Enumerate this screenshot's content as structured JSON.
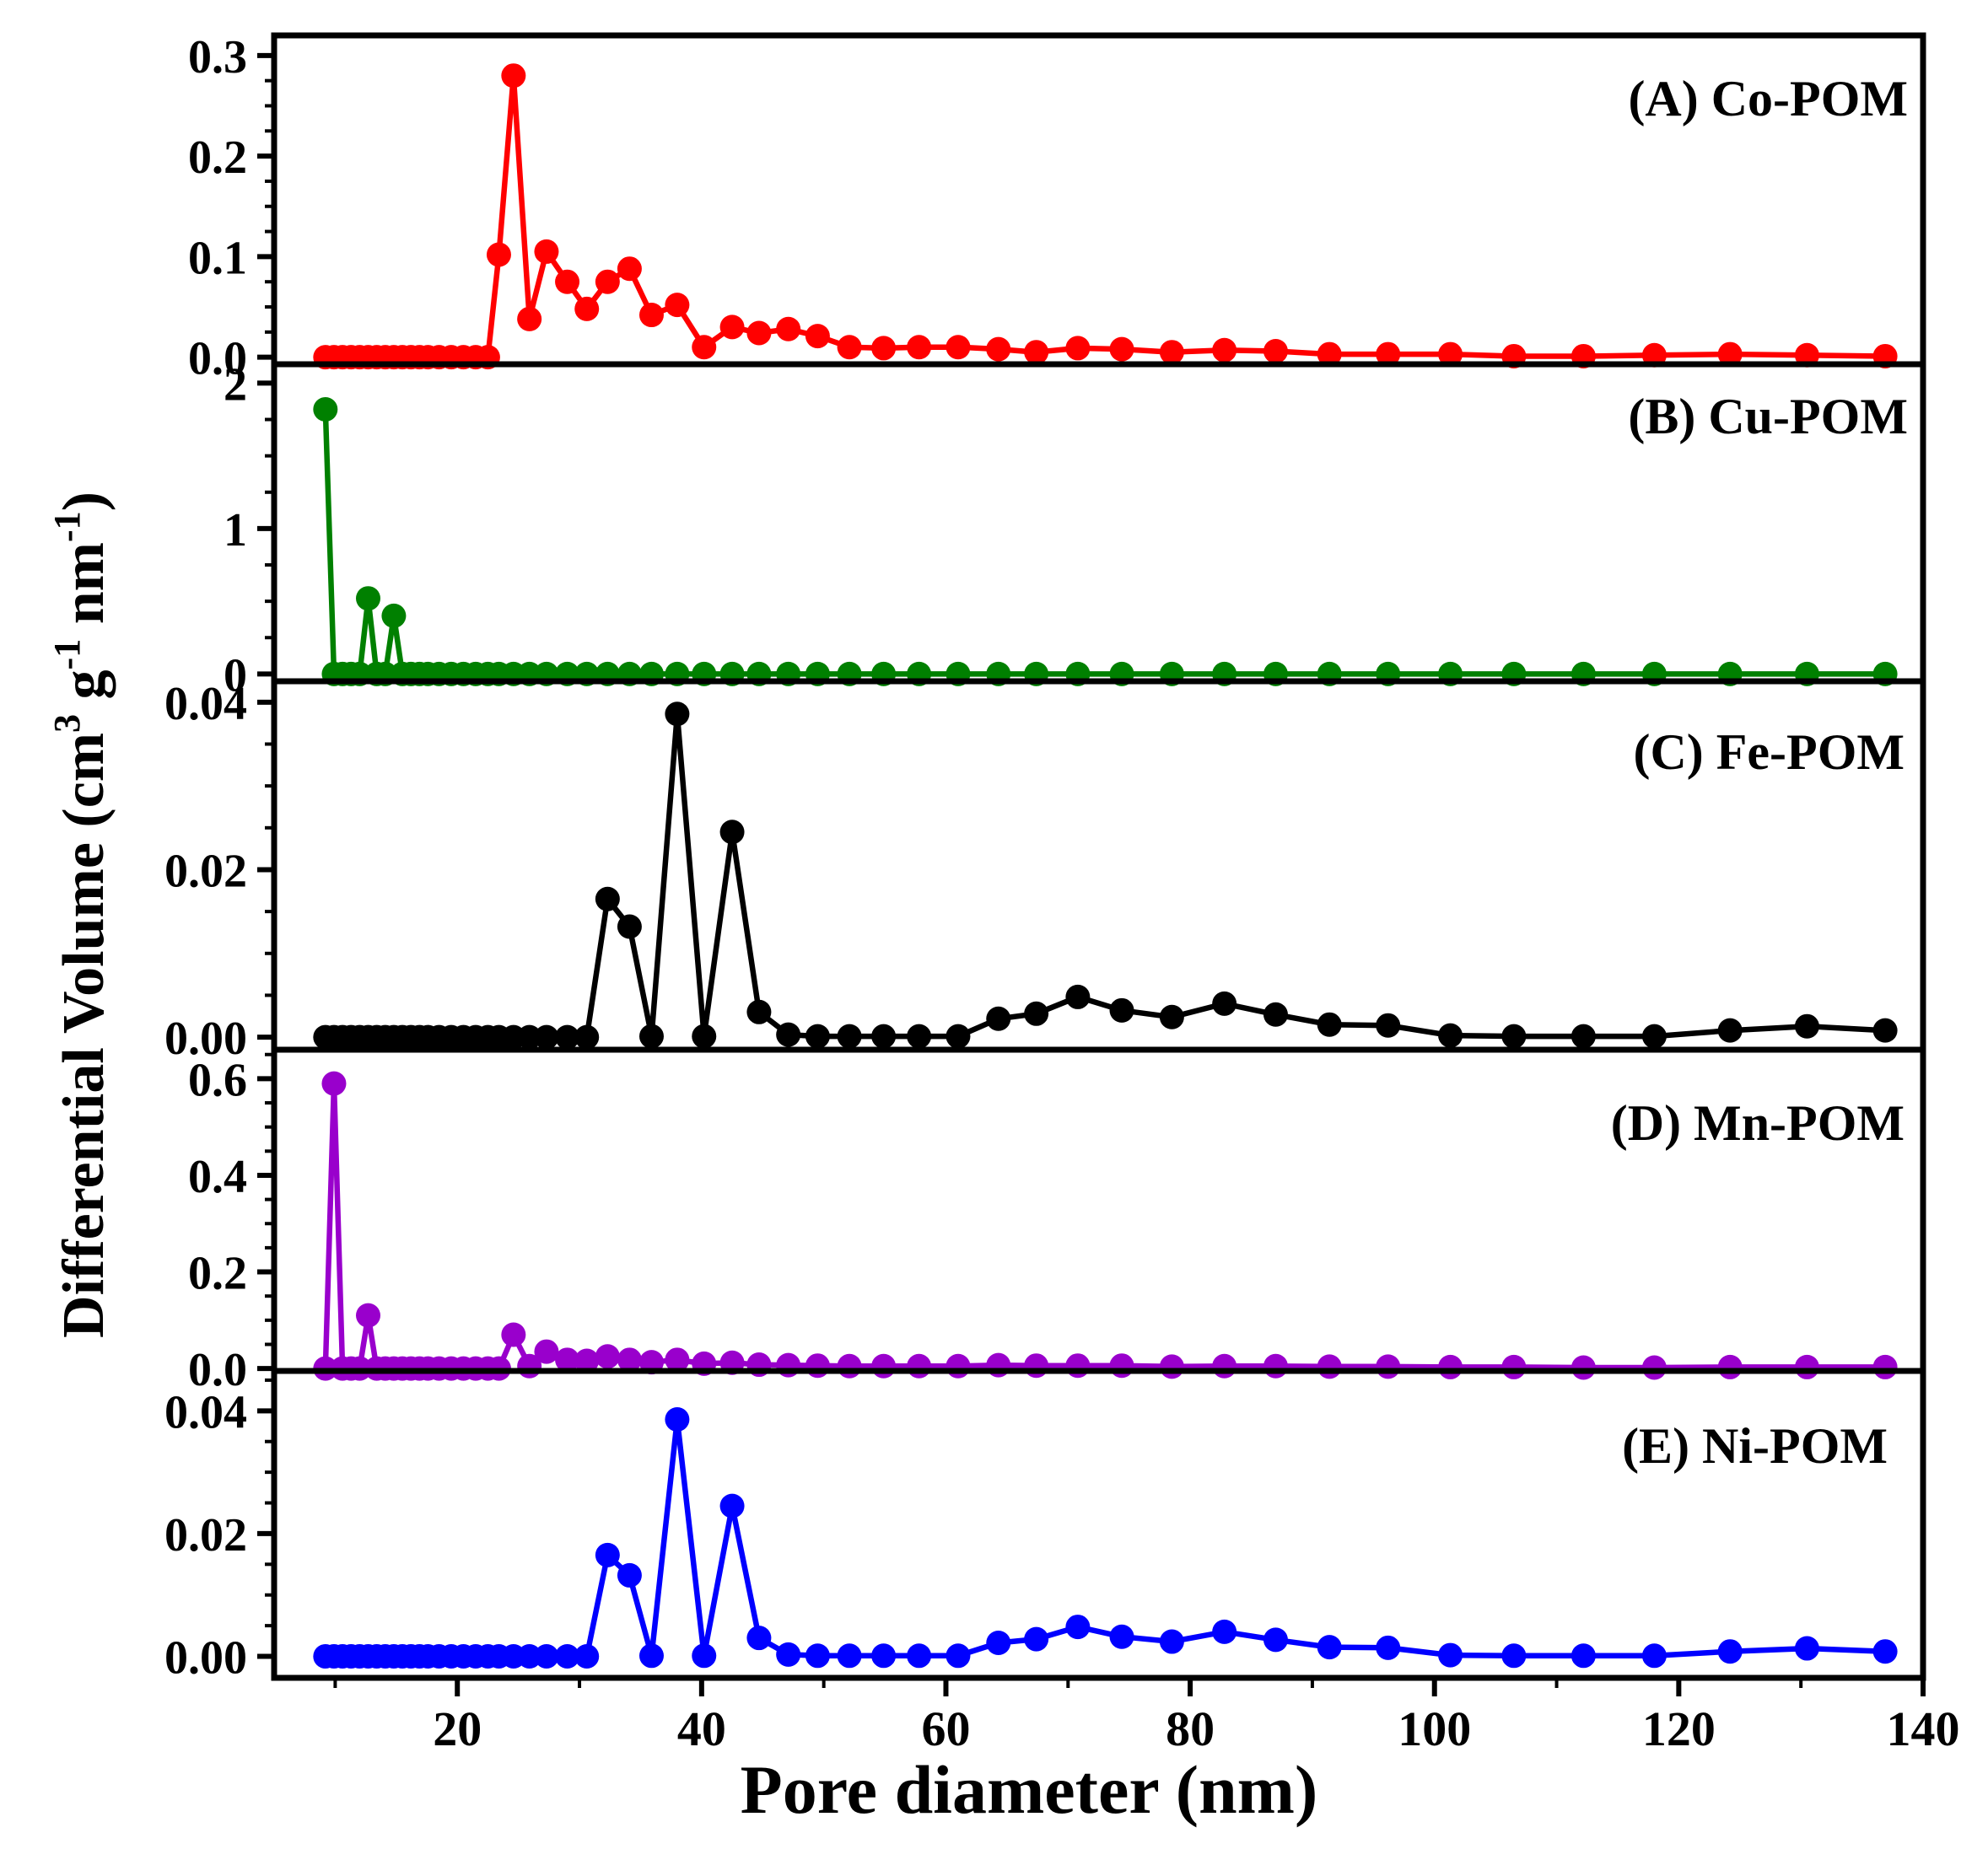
{
  "figure": {
    "xlabel": "Pore diameter (nm)",
    "ylabel": {
      "base": "Differential Volume (cm",
      "sup1": "3",
      "mid": " g",
      "sup2": "-1",
      "tail": " nm",
      "sup3": "-1",
      "end": ")"
    }
  },
  "chart_data": [
    {
      "type": "line",
      "title": "(A) Co-POM",
      "color": "#ff0000",
      "xlim": [
        5,
        140
      ],
      "ylim": [
        -0.007,
        0.32
      ],
      "yticks": [
        0.0,
        0.1,
        0.2,
        0.3
      ],
      "ytick_labels": [
        "0.0",
        "0.1",
        "0.2",
        "0.3"
      ],
      "x": [
        9.2,
        9.9,
        10.6,
        11.3,
        12.0,
        12.7,
        13.4,
        14.1,
        14.8,
        15.5,
        16.2,
        16.9,
        17.6,
        18.5,
        19.5,
        20.5,
        21.5,
        22.5,
        23.4,
        24.6,
        25.9,
        27.3,
        29.0,
        30.6,
        32.3,
        34.1,
        35.9,
        38.0,
        40.2,
        42.5,
        44.7,
        47.1,
        49.5,
        52.1,
        54.9,
        57.8,
        61.0,
        64.3,
        67.4,
        70.8,
        74.4,
        78.5,
        82.8,
        87.0,
        91.4,
        96.2,
        101.3,
        106.5,
        112.2,
        118.0,
        124.2,
        130.5,
        136.9
      ],
      "y": [
        0,
        0,
        0,
        0,
        0,
        0,
        0,
        0,
        0,
        0,
        0,
        0,
        0,
        0,
        0,
        0,
        0,
        0,
        0.102,
        0.28,
        0.038,
        0.105,
        0.075,
        0.048,
        0.075,
        0.088,
        0.042,
        0.052,
        0.01,
        0.03,
        0.024,
        0.028,
        0.021,
        0.01,
        0.009,
        0.01,
        0.01,
        0.008,
        0.005,
        0.009,
        0.008,
        0.005,
        0.007,
        0.006,
        0.003,
        0.003,
        0.003,
        0.001,
        0.001,
        0.002,
        0.003,
        0.002,
        0.001
      ]
    },
    {
      "type": "line",
      "title": "(B) Cu-POM",
      "color": "#008000",
      "xlim": [
        5,
        140
      ],
      "ylim": [
        -0.05,
        2.13
      ],
      "yticks": [
        0,
        1,
        2
      ],
      "ytick_labels": [
        "0",
        "1",
        "2"
      ],
      "x": [
        9.2,
        9.9,
        10.6,
        11.3,
        12.0,
        12.7,
        13.4,
        14.1,
        14.8,
        15.5,
        16.2,
        16.9,
        17.6,
        18.5,
        19.5,
        20.5,
        21.5,
        22.5,
        23.4,
        24.6,
        25.9,
        27.3,
        29.0,
        30.6,
        32.3,
        34.1,
        35.9,
        38.0,
        40.2,
        42.5,
        44.7,
        47.1,
        49.5,
        52.1,
        54.9,
        57.8,
        61.0,
        64.3,
        67.4,
        70.8,
        74.4,
        78.5,
        82.8,
        87.0,
        91.4,
        96.2,
        101.3,
        106.5,
        112.2,
        118.0,
        124.2,
        130.5,
        136.9
      ],
      "y": [
        1.82,
        0,
        0,
        0,
        0,
        0.52,
        0,
        0,
        0.4,
        0,
        0,
        0,
        0,
        0,
        0,
        0,
        0,
        0,
        0,
        0,
        0,
        0,
        0,
        0,
        0,
        0,
        0,
        0,
        0,
        0,
        0,
        0,
        0,
        0,
        0,
        0,
        0,
        0,
        0,
        0,
        0,
        0,
        0,
        0,
        0,
        0,
        0,
        0,
        0,
        0,
        0,
        0,
        0
      ]
    },
    {
      "type": "line",
      "title": "(C) Fe-POM",
      "color": "#000000",
      "xlim": [
        5,
        140
      ],
      "ylim": [
        -0.0015,
        0.0425
      ],
      "yticks": [
        0.0,
        0.02,
        0.04
      ],
      "ytick_labels": [
        "0.00",
        "0.02",
        "0.04"
      ],
      "x": [
        9.2,
        9.9,
        10.6,
        11.3,
        12.0,
        12.7,
        13.4,
        14.1,
        14.8,
        15.5,
        16.2,
        16.9,
        17.6,
        18.5,
        19.5,
        20.5,
        21.5,
        22.5,
        23.4,
        24.6,
        25.9,
        27.3,
        29.0,
        30.6,
        32.3,
        34.1,
        35.9,
        38.0,
        40.2,
        42.5,
        44.7,
        47.1,
        49.5,
        52.1,
        54.9,
        57.8,
        61.0,
        64.3,
        67.4,
        70.8,
        74.4,
        78.5,
        82.8,
        87.0,
        91.4,
        96.2,
        101.3,
        106.5,
        112.2,
        118.0,
        124.2,
        130.5,
        136.9
      ],
      "y": [
        0,
        0,
        0,
        0,
        0,
        0,
        0,
        0,
        0,
        0,
        0,
        0,
        0,
        0,
        0,
        0,
        0,
        0,
        0,
        0,
        0,
        0,
        0,
        0,
        0.0165,
        0.0132,
        0.0001,
        0.0386,
        0.0001,
        0.0245,
        0.003,
        0.0003,
        0.0001,
        0.0001,
        0.0001,
        0.0001,
        0.0001,
        0.0022,
        0.0028,
        0.0048,
        0.0032,
        0.0024,
        0.004,
        0.0027,
        0.0015,
        0.0014,
        0.0002,
        0.0001,
        0.0001,
        0.0001,
        0.0008,
        0.0013,
        0.0008
      ]
    },
    {
      "type": "line",
      "title": "(D) Mn-POM",
      "color": "#9900cc",
      "xlim": [
        5,
        140
      ],
      "ylim": [
        -0.005,
        0.66
      ],
      "yticks": [
        0.0,
        0.2,
        0.4,
        0.6
      ],
      "ytick_labels": [
        "0.0",
        "0.2",
        "0.4",
        "0.6"
      ],
      "x": [
        9.2,
        9.9,
        10.6,
        11.3,
        12.0,
        12.7,
        13.4,
        14.1,
        14.8,
        15.5,
        16.2,
        16.9,
        17.6,
        18.5,
        19.5,
        20.5,
        21.5,
        22.5,
        23.4,
        24.6,
        25.9,
        27.3,
        29.0,
        30.6,
        32.3,
        34.1,
        35.9,
        38.0,
        40.2,
        42.5,
        44.7,
        47.1,
        49.5,
        52.1,
        54.9,
        57.8,
        61.0,
        64.3,
        67.4,
        70.8,
        74.4,
        78.5,
        82.8,
        87.0,
        91.4,
        96.2,
        101.3,
        106.5,
        112.2,
        118.0,
        124.2,
        130.5,
        136.9
      ],
      "y": [
        0,
        0.59,
        0,
        0,
        0,
        0.11,
        0,
        0,
        0,
        0,
        0,
        0,
        0,
        0,
        0,
        0,
        0,
        0,
        0,
        0.07,
        0.005,
        0.035,
        0.018,
        0.016,
        0.025,
        0.018,
        0.013,
        0.018,
        0.01,
        0.012,
        0.008,
        0.007,
        0.006,
        0.005,
        0.005,
        0.005,
        0.005,
        0.007,
        0.006,
        0.006,
        0.006,
        0.004,
        0.005,
        0.005,
        0.004,
        0.004,
        0.003,
        0.003,
        0.002,
        0.002,
        0.003,
        0.003,
        0.003
      ]
    },
    {
      "type": "line",
      "title": "(E) Ni-POM",
      "color": "#0000ff",
      "xlim": [
        5,
        140
      ],
      "ylim": [
        -0.0035,
        0.0465
      ],
      "yticks": [
        0.0,
        0.02,
        0.04
      ],
      "ytick_labels": [
        "0.00",
        "0.02",
        "0.04"
      ],
      "x": [
        9.2,
        9.9,
        10.6,
        11.3,
        12.0,
        12.7,
        13.4,
        14.1,
        14.8,
        15.5,
        16.2,
        16.9,
        17.6,
        18.5,
        19.5,
        20.5,
        21.5,
        22.5,
        23.4,
        24.6,
        25.9,
        27.3,
        29.0,
        30.6,
        32.3,
        34.1,
        35.9,
        38.0,
        40.2,
        42.5,
        44.7,
        47.1,
        49.5,
        52.1,
        54.9,
        57.8,
        61.0,
        64.3,
        67.4,
        70.8,
        74.4,
        78.5,
        82.8,
        87.0,
        91.4,
        96.2,
        101.3,
        106.5,
        112.2,
        118.0,
        124.2,
        130.5,
        136.9
      ],
      "y": [
        0,
        0,
        0,
        0,
        0,
        0,
        0,
        0,
        0,
        0,
        0,
        0,
        0,
        0,
        0,
        0,
        0,
        0,
        0,
        0,
        0,
        0,
        0,
        0,
        0.0165,
        0.0132,
        0.0001,
        0.0386,
        0.0001,
        0.0245,
        0.003,
        0.0003,
        0.0001,
        0.0001,
        0.0001,
        0.0001,
        0.0001,
        0.0022,
        0.0028,
        0.0048,
        0.0032,
        0.0024,
        0.004,
        0.0027,
        0.0015,
        0.0014,
        0.0002,
        0.0001,
        0.0001,
        0.0001,
        0.0008,
        0.0013,
        0.0008
      ],
      "xticks": [
        20,
        40,
        60,
        80,
        100,
        120,
        140
      ],
      "xtick_labels": [
        "20",
        "40",
        "60",
        "80",
        "100",
        "120",
        "140"
      ]
    }
  ]
}
